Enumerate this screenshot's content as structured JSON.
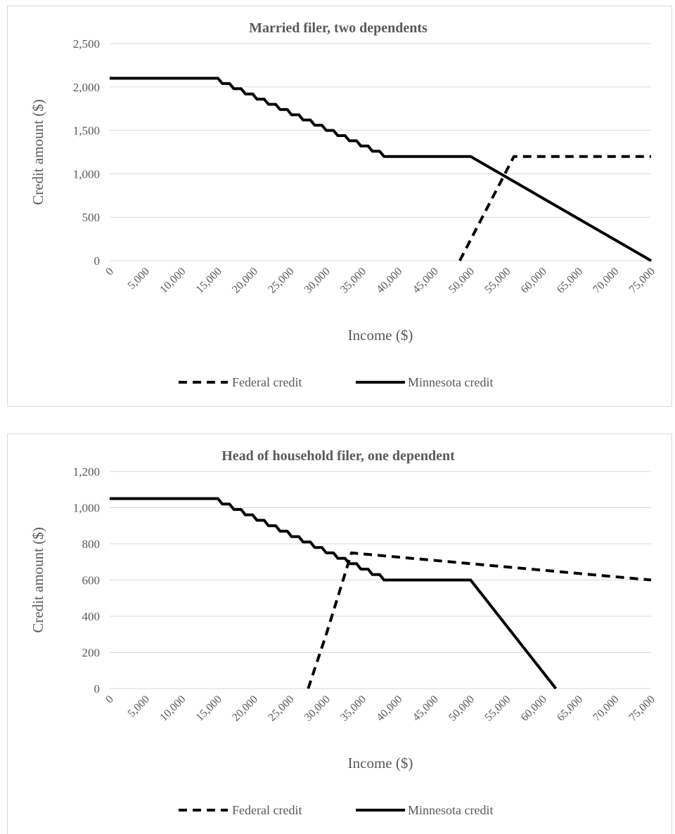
{
  "chart_data": [
    {
      "type": "line",
      "title": "Married filer, two dependents",
      "xlabel": "Income ($)",
      "ylabel": "Credit amount ($)",
      "xlim": [
        0,
        75000
      ],
      "ylim": [
        0,
        2500
      ],
      "x_ticks": [
        "0",
        "5,000",
        "10,000",
        "15,000",
        "20,000",
        "25,000",
        "30,000",
        "35,000",
        "40,000",
        "45,000",
        "50,000",
        "55,000",
        "60,000",
        "65,000",
        "70,000",
        "75,000"
      ],
      "y_ticks": [
        "0",
        "500",
        "1,000",
        "1,500",
        "2,000",
        "2,500"
      ],
      "grid": "horizontal",
      "legend_position": "bottom",
      "series": [
        {
          "name": "Federal credit",
          "style": "dashed",
          "color": "#000000",
          "x": [
            48500,
            56000,
            75000
          ],
          "y": [
            0,
            1200,
            1200
          ]
        },
        {
          "name": "Minnesota credit",
          "style": "solid",
          "color": "#000000",
          "x": [
            0,
            15000,
            15600,
            16600,
            17200,
            18200,
            18800,
            19800,
            20400,
            21400,
            22000,
            23000,
            23600,
            24600,
            25200,
            26200,
            26800,
            27800,
            28400,
            29400,
            30000,
            31000,
            31600,
            32600,
            33200,
            34200,
            34800,
            35800,
            36400,
            37400,
            38000,
            39000,
            39600,
            40600,
            41200,
            42200,
            42800,
            43800,
            44400,
            50000,
            75000
          ],
          "y": [
            2100,
            2100,
            2040,
            2040,
            1980,
            1980,
            1920,
            1920,
            1860,
            1860,
            1800,
            1800,
            1740,
            1740,
            1680,
            1680,
            1620,
            1620,
            1560,
            1560,
            1500,
            1500,
            1440,
            1440,
            1380,
            1380,
            1320,
            1320,
            1260,
            1260,
            1200,
            1200,
            1200,
            1200,
            1200,
            1200,
            1200,
            1200,
            1200,
            1200,
            0
          ]
        }
      ]
    },
    {
      "type": "line",
      "title": "Head of household filer, one dependent",
      "xlabel": "Income ($)",
      "ylabel": "Credit amount ($)",
      "xlim": [
        0,
        75000
      ],
      "ylim": [
        0,
        1200
      ],
      "x_ticks": [
        "0",
        "5,000",
        "10,000",
        "15,000",
        "20,000",
        "25,000",
        "30,000",
        "35,000",
        "40,000",
        "45,000",
        "50,000",
        "55,000",
        "60,000",
        "65,000",
        "70,000",
        "75,000"
      ],
      "y_ticks": [
        "0",
        "200",
        "400",
        "600",
        "800",
        "1,000",
        "1,200"
      ],
      "grid": "horizontal",
      "legend_position": "bottom",
      "series": [
        {
          "name": "Federal credit",
          "style": "dashed",
          "color": "#000000",
          "x": [
            27500,
            30000,
            33500,
            75000
          ],
          "y": [
            0,
            300,
            750,
            600
          ]
        },
        {
          "name": "Minnesota credit",
          "style": "solid",
          "color": "#000000",
          "x": [
            0,
            15000,
            15600,
            16600,
            17200,
            18200,
            18800,
            19800,
            20400,
            21400,
            22000,
            23000,
            23600,
            24600,
            25200,
            26200,
            26800,
            27800,
            28400,
            29400,
            30000,
            31000,
            31600,
            32600,
            33200,
            34200,
            34800,
            35800,
            36400,
            37400,
            38000,
            39000,
            39600,
            40600,
            41200,
            42200,
            42800,
            43800,
            44400,
            50000,
            61800
          ],
          "y": [
            1050,
            1050,
            1020,
            1020,
            990,
            990,
            960,
            960,
            930,
            930,
            900,
            900,
            870,
            870,
            840,
            840,
            810,
            810,
            780,
            780,
            750,
            750,
            720,
            720,
            690,
            690,
            660,
            660,
            630,
            630,
            600,
            600,
            600,
            600,
            600,
            600,
            600,
            600,
            600,
            600,
            0
          ]
        }
      ]
    }
  ]
}
